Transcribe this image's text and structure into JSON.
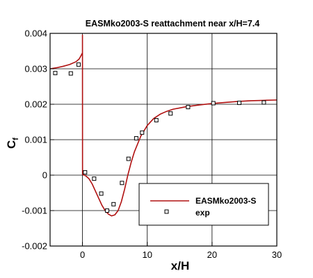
{
  "chart_data": {
    "type": "line",
    "title": "EASMko2003-S reattachment near x/H=7.4",
    "xlabel": "x/H",
    "ylabel_main": "C",
    "ylabel_sub": "f",
    "xlim": [
      -5,
      30
    ],
    "ylim": [
      -0.002,
      0.004
    ],
    "x_ticks": [
      0,
      10,
      20,
      30
    ],
    "y_ticks": [
      -0.002,
      -0.001,
      0,
      0.001,
      0.002,
      0.003,
      0.004
    ],
    "x_tick_labels": [
      "0",
      "10",
      "20",
      "30"
    ],
    "y_tick_labels": [
      "-0.002",
      "-0.001",
      "0",
      "0.001",
      "0.002",
      "0.003",
      "0.004"
    ],
    "grid": true,
    "legend_position": "bottom-right",
    "series": [
      {
        "name": "EASMko2003-S",
        "style": "line",
        "color": "#b01010",
        "x": [
          -5,
          -4,
          -3,
          -2,
          -1,
          -0.5,
          -0.2,
          0,
          0,
          0.01,
          0.5,
          1,
          1.5,
          2,
          2.5,
          3,
          3.5,
          4,
          4.5,
          5,
          5.5,
          6,
          6.5,
          7,
          7.5,
          8,
          9,
          10,
          11,
          12,
          13,
          14,
          16,
          18,
          20,
          22,
          24,
          26,
          28,
          30
        ],
        "y": [
          0.003,
          0.00303,
          0.00307,
          0.00312,
          0.0032,
          0.00328,
          0.00338,
          0.00345,
          0.00395,
          2e-05,
          -2e-05,
          -0.0001,
          -0.00025,
          -0.00045,
          -0.00065,
          -0.00085,
          -0.001,
          -0.0011,
          -0.00115,
          -0.00112,
          -0.001,
          -0.00075,
          -0.0004,
          0.0,
          0.00035,
          0.00065,
          0.0011,
          0.0014,
          0.0016,
          0.00172,
          0.0018,
          0.00186,
          0.00193,
          0.00198,
          0.00202,
          0.00205,
          0.00208,
          0.0021,
          0.00211,
          0.00212
        ]
      },
      {
        "name": "exp",
        "style": "markers",
        "marker": "square",
        "color": "#000000",
        "x": [
          -4.2,
          -1.8,
          -0.6,
          0.4,
          1.8,
          2.9,
          3.8,
          4.8,
          6.1,
          7.1,
          8.3,
          9.2,
          11.4,
          13.6,
          16.3,
          20.2,
          24.2,
          28.0
        ],
        "y": [
          0.00288,
          0.00287,
          0.00312,
          8e-05,
          -0.0001,
          -0.00052,
          -0.001,
          -0.00082,
          -0.00022,
          0.00046,
          0.00104,
          0.0012,
          0.00155,
          0.00174,
          0.00192,
          0.00203,
          0.00204,
          0.00205
        ]
      }
    ]
  }
}
